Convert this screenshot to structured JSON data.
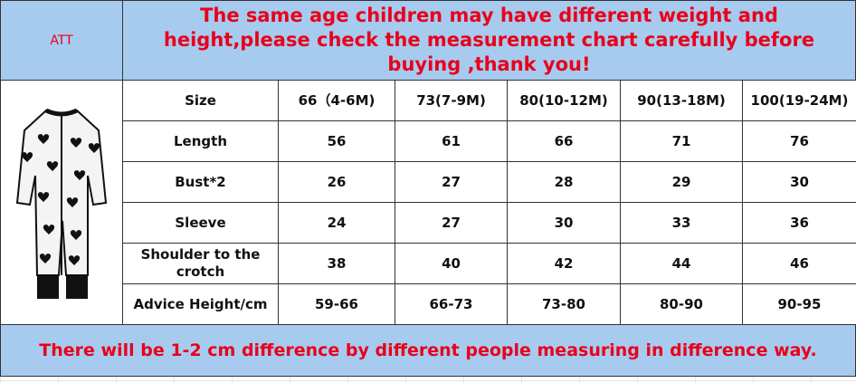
{
  "header": {
    "corner": "ATT",
    "notice": "The same age children may have different weight and height,please check the measurement chart carefully before buying ,thank you!"
  },
  "table": {
    "columns": [
      "Size",
      "66（4-6M)",
      "73(7-9M)",
      "80(10-12M)",
      "90(13-18M)",
      "100(19-24M)"
    ],
    "rows": [
      [
        "Length",
        56,
        61,
        66,
        71,
        76
      ],
      [
        "Bust*2",
        26,
        27,
        28,
        29,
        30
      ],
      [
        "Sleeve",
        24,
        27,
        30,
        33,
        36
      ],
      [
        "Shoulder to the crotch",
        38,
        40,
        42,
        44,
        46
      ],
      [
        "Advice Height/cm",
        "59-66",
        "66-73",
        "73-80",
        "80-90",
        "90-95"
      ]
    ]
  },
  "footer": {
    "note": "There will be 1-2 cm difference by different people measuring in difference way."
  }
}
